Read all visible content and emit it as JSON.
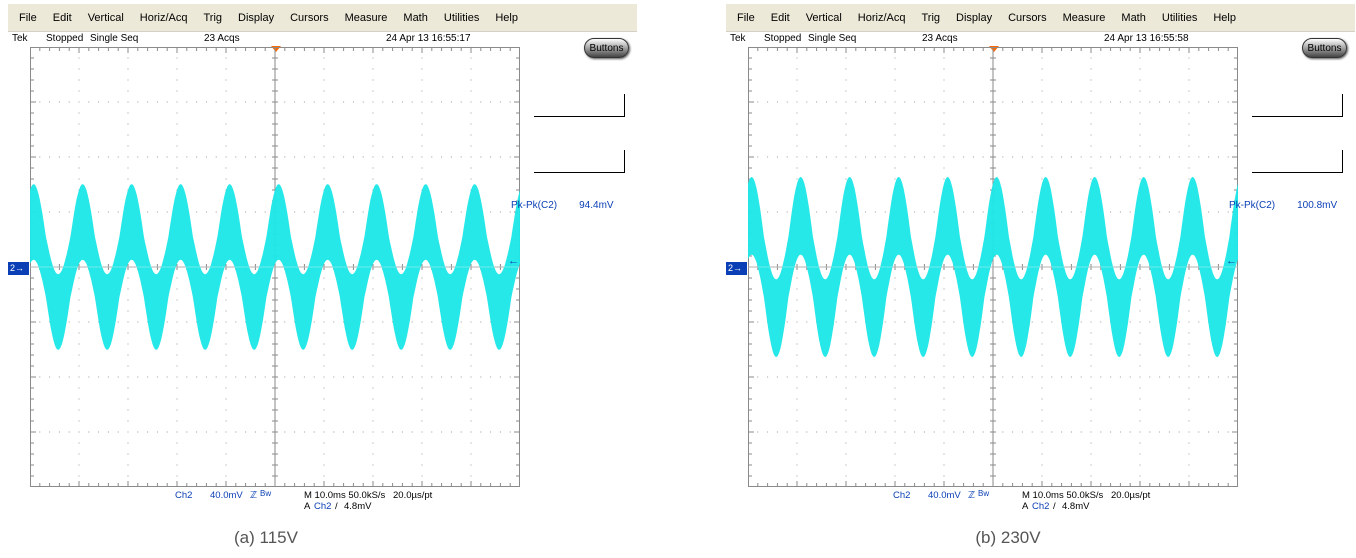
{
  "menu": [
    "File",
    "Edit",
    "Vertical",
    "Horiz/Acq",
    "Trig",
    "Display",
    "Cursors",
    "Measure",
    "Math",
    "Utilities",
    "Help"
  ],
  "colors": {
    "trace": "#1fe7e7",
    "marker_blue": "#0a3fb5",
    "trigger_orange": "#ff6a00",
    "menubar": "#ece9d8"
  },
  "panels": [
    {
      "brand": "Tek",
      "acq_state": "Stopped",
      "acq_mode": "Single Seq",
      "acq_count": "23 Acqs",
      "datetime": "24 Apr 13 16:55:17",
      "buttons_label": "Buttons",
      "channel_marker": "2",
      "measurement": {
        "label": "Pk-Pk(C2)",
        "value": "94.4mV"
      },
      "waveform": {
        "cycles": 10,
        "ripple_peak_div": 1.1,
        "noise_band_div": 0.55
      },
      "bottom": {
        "channel": "Ch2",
        "scale": "40.0mV",
        "bw_symbol": "ℤ",
        "bw": "Bw",
        "timebase": "M 10.0ms 50.0kS/s",
        "sample_interval": "20.0µs/pt",
        "trigger_prefix": "A",
        "trigger_source": "Ch2",
        "trigger_slope": "/",
        "trigger_level": "4.8mV"
      },
      "caption": "(a) 115V"
    },
    {
      "brand": "Tek",
      "acq_state": "Stopped",
      "acq_mode": "Single Seq",
      "acq_count": "23 Acqs",
      "datetime": "24 Apr 13 16:55:58",
      "buttons_label": "Buttons",
      "channel_marker": "2",
      "measurement": {
        "label": "Pk-Pk(C2)",
        "value": "100.8mV"
      },
      "waveform": {
        "cycles": 10,
        "ripple_peak_div": 1.25,
        "noise_band_div": 0.55
      },
      "bottom": {
        "channel": "Ch2",
        "scale": "40.0mV",
        "bw_symbol": "ℤ",
        "bw": "Bw",
        "timebase": "M 10.0ms 50.0kS/s",
        "sample_interval": "20.0µs/pt",
        "trigger_prefix": "A",
        "trigger_source": "Ch2",
        "trigger_slope": "/",
        "trigger_level": "4.8mV"
      },
      "caption": "(b) 230V"
    }
  ]
}
